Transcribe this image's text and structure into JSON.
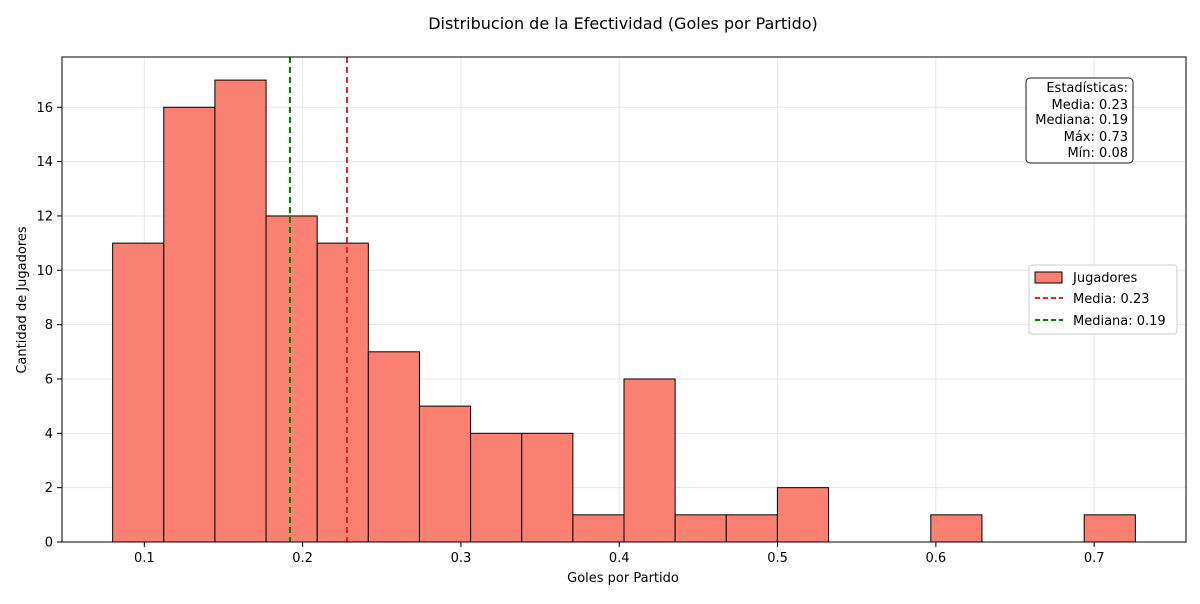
{
  "chart_data": {
    "type": "bar",
    "title": "Distribucion de la Efectividad (Goles por Partido)",
    "xlabel": "Goles por Partido",
    "ylabel": "Cantidad de Jugadores",
    "xlim": [
      0.048,
      0.758
    ],
    "ylim": [
      0,
      17.85
    ],
    "x_ticks": [
      0.1,
      0.2,
      0.3,
      0.4,
      0.5,
      0.6,
      0.7
    ],
    "x_tick_labels": [
      "0.1",
      "0.2",
      "0.3",
      "0.4",
      "0.5",
      "0.6",
      "0.7"
    ],
    "y_ticks": [
      0,
      2,
      4,
      6,
      8,
      10,
      12,
      14,
      16
    ],
    "y_tick_labels": [
      "0",
      "2",
      "4",
      "6",
      "8",
      "10",
      "12",
      "14",
      "16"
    ],
    "grid": true,
    "bin_start": 0.08,
    "bin_width": 0.0323,
    "counts": [
      11,
      16,
      17,
      12,
      11,
      7,
      5,
      4,
      4,
      1,
      6,
      1,
      1,
      2,
      0,
      0,
      1,
      0,
      0,
      1
    ],
    "series_name": "Jugadores",
    "bar_color": "#FA8072",
    "edge_color": "#000000",
    "mean": 0.228,
    "mean_label": "Media: 0.23",
    "mean_color": "#d62728",
    "median": 0.192,
    "median_label": "Mediana: 0.19",
    "median_color": "#008000",
    "legend_position": "center-right",
    "stats_box": {
      "lines": [
        "Estadísticas:",
        "Media: 0.23",
        "Mediana: 0.19",
        "Máx: 0.73",
        "Mín: 0.08"
      ]
    }
  }
}
